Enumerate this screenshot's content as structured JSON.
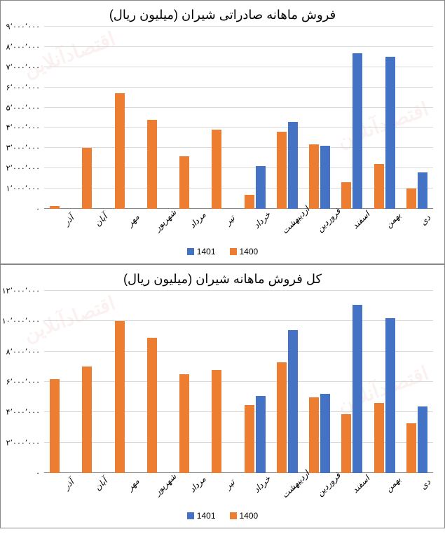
{
  "colors": {
    "series_1401": "#4472c4",
    "series_1400": "#ed7d31",
    "grid": "#d9d9d9",
    "axis": "#888888",
    "text": "#000000",
    "background": "#ffffff"
  },
  "watermark_text": "اقتصادآنلاین",
  "categories": [
    "دی",
    "بهمن",
    "اسفند",
    "فروردین",
    "اردیبهشت",
    "خرداد",
    "تیر",
    "مرداد",
    "شهریور",
    "مهر",
    "آبان",
    "آذر"
  ],
  "chart1": {
    "title": "فروش ماهانه صادراتی شیران (میلیون ریال)",
    "type": "bar",
    "ymin": 0,
    "ymax": 9000000,
    "ytick_step": 1000000,
    "ytick_labels": [
      "۰",
      "۱٬۰۰۰٬۰۰۰",
      "۲٬۰۰۰٬۰۰۰",
      "۳٬۰۰۰٬۰۰۰",
      "۴٬۰۰۰٬۰۰۰",
      "۵٬۰۰۰٬۰۰۰",
      "۶٬۰۰۰٬۰۰۰",
      "۷٬۰۰۰٬۰۰۰",
      "۸٬۰۰۰٬۰۰۰",
      "۹٬۰۰۰٬۰۰۰"
    ],
    "series": [
      {
        "name": "1401",
        "color_key": "series_1401",
        "values": [
          1800000,
          7500000,
          7700000,
          3100000,
          4300000,
          2100000,
          null,
          null,
          null,
          null,
          null,
          null
        ]
      },
      {
        "name": "1400",
        "color_key": "series_1400",
        "values": [
          1000000,
          2200000,
          1300000,
          3200000,
          3800000,
          700000,
          3900000,
          2600000,
          4400000,
          5700000,
          3000000,
          150000
        ]
      }
    ]
  },
  "chart2": {
    "title": "کل فروش ماهانه شیران (میلیون ریال)",
    "type": "bar",
    "ymin": 0,
    "ymax": 12000000,
    "ytick_step": 2000000,
    "ytick_labels": [
      "۰",
      "۲٬۰۰۰٬۰۰۰",
      "۴٬۰۰۰٬۰۰۰",
      "۶٬۰۰۰٬۰۰۰",
      "۸٬۰۰۰٬۰۰۰",
      "۱۰٬۰۰۰٬۰۰۰",
      "۱۲٬۰۰۰٬۰۰۰"
    ],
    "series": [
      {
        "name": "1401",
        "color_key": "series_1401",
        "values": [
          4400000,
          10200000,
          11100000,
          5200000,
          9400000,
          5100000,
          null,
          null,
          null,
          null,
          null,
          null
        ]
      },
      {
        "name": "1400",
        "color_key": "series_1400",
        "values": [
          3300000,
          4600000,
          3900000,
          5000000,
          7300000,
          4500000,
          6800000,
          6500000,
          8900000,
          10000000,
          7000000,
          6200000
        ]
      }
    ]
  },
  "legend_labels": {
    "s1401": "1401",
    "s1400": "1400"
  }
}
